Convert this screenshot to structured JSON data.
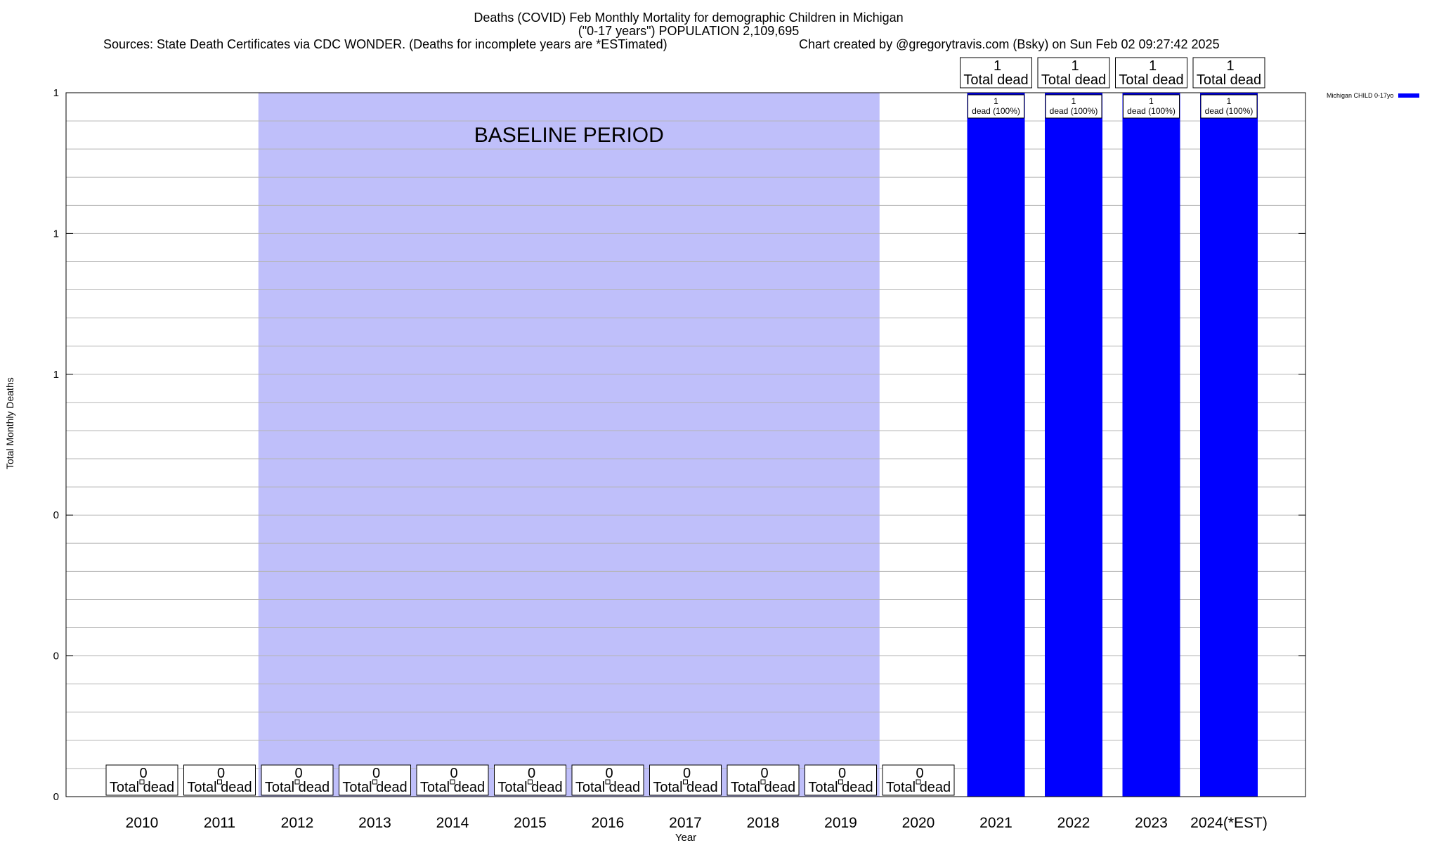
{
  "header": {
    "title_line1": "Deaths (COVID) Feb Monthly Mortality for demographic Children in Michigan",
    "title_line2": "(\"0-17 years\") POPULATION 2,109,695",
    "sources": "Sources: State Death Certificates via CDC WONDER. (Deaths for incomplete years are *ESTimated)",
    "credit": "Chart created by @gregorytravis.com (Bsky) on Sun Feb 02 09:27:42 2025"
  },
  "chart_data": {
    "type": "bar",
    "categories": [
      "2010",
      "2011",
      "2012",
      "2013",
      "2014",
      "2015",
      "2016",
      "2017",
      "2018",
      "2019",
      "2020",
      "2021",
      "2022",
      "2023",
      "2024(*EST)"
    ],
    "series": [
      {
        "name": "Michigan CHILD 0-17yo",
        "values": [
          0,
          0,
          0,
          0,
          0,
          0,
          0,
          0,
          0,
          0,
          0,
          1,
          1,
          1,
          1
        ],
        "color": "#0000ff"
      }
    ],
    "top_labels": [
      "0\nTotal dead",
      "0\nTotal dead",
      "0\nTotal dead",
      "0\nTotal dead",
      "0\nTotal dead",
      "0\nTotal dead",
      "0\nTotal dead",
      "0\nTotal dead",
      "0\nTotal dead",
      "0\nTotal dead",
      "0\nTotal dead",
      "1\nTotal dead",
      "1\nTotal dead",
      "1\nTotal dead",
      "1\nTotal dead"
    ],
    "inner_labels": [
      "",
      "",
      "",
      "",
      "",
      "",
      "",
      "",
      "",
      "",
      "",
      "1\ndead (100%)",
      "1\ndead (100%)",
      "1\ndead (100%)",
      "1\ndead (100%)"
    ],
    "ylim": [
      0,
      1
    ],
    "ytick_values": [
      0,
      0.2,
      0.4,
      0.6,
      0.8,
      1.0
    ],
    "ytick_labels": [
      "0",
      "0",
      "0",
      "1",
      "1",
      "1"
    ],
    "xlabel": "Year",
    "ylabel": "Total Monthly Deaths",
    "baseline": {
      "label": "BASELINE PERIOD",
      "from": "2012",
      "to": "2019",
      "color": "#bfbffa"
    },
    "grid": true,
    "legend_position": "top-right"
  }
}
